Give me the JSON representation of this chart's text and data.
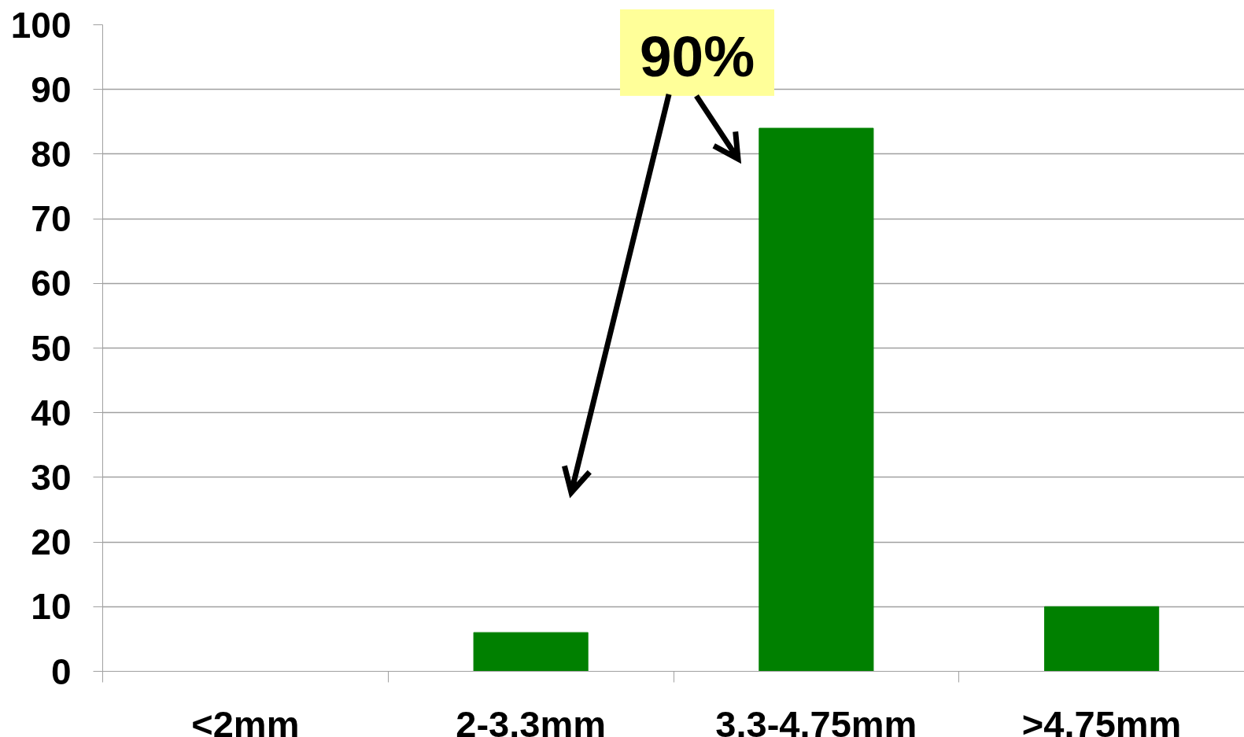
{
  "chart_data": {
    "type": "bar",
    "categories": [
      "<2mm",
      "2-3.3mm",
      "3.3-4.75mm",
      ">4.75mm"
    ],
    "values": [
      0,
      6,
      84,
      10
    ],
    "color": "#008000",
    "ylim": [
      0,
      100
    ],
    "yticks": [
      0,
      10,
      20,
      30,
      40,
      50,
      60,
      70,
      80,
      90,
      100
    ],
    "grid": "y",
    "annotations": [
      "90%"
    ]
  }
}
